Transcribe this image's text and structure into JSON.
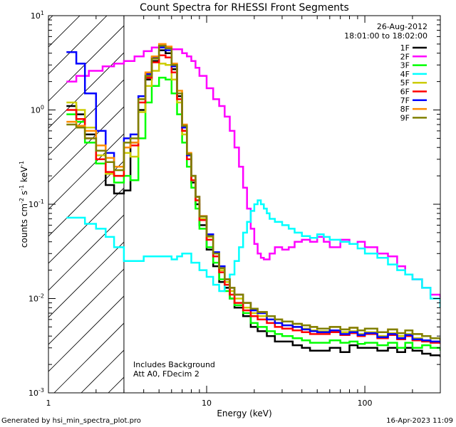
{
  "chart_data": {
    "type": "line",
    "title": "Count Spectra for RHESSI Front Segments",
    "xlabel": "Energy (keV)",
    "ylabel_parts": {
      "main": "counts cm",
      "exp1": "-2",
      "s": " s",
      "exp2": "-1",
      "unit": " keV",
      "exp3": "-1"
    },
    "x_scale": "log",
    "y_scale": "log",
    "xlim": [
      1,
      300
    ],
    "ylim": [
      0.001,
      10
    ],
    "x_ticks": [
      {
        "value": 1,
        "label": "1"
      },
      {
        "value": 10,
        "label": "10"
      },
      {
        "value": 100,
        "label": "100"
      }
    ],
    "y_ticks": [
      {
        "value": 10,
        "base": "10",
        "exp": "1"
      },
      {
        "value": 1,
        "base": "10",
        "exp": "0"
      },
      {
        "value": 0.1,
        "base": "10",
        "exp": "-1"
      },
      {
        "value": 0.01,
        "base": "10",
        "exp": "-2"
      },
      {
        "value": 0.001,
        "base": "10",
        "exp": "-3"
      }
    ],
    "date": "26-Aug-2012",
    "time_range": "18:01:00 to 18:02:00",
    "shaded_region_max_keV": 3,
    "annotations": [
      "Includes Background",
      "Att A0, FDecim 2"
    ],
    "footer_left": "Generated by hsi_min_spectra_plot.pro",
    "footer_right": "16-Apr-2023 11:09",
    "series": [
      {
        "name": "1F",
        "color": "#000000",
        "x": [
          1.3,
          1.5,
          1.7,
          2.0,
          2.3,
          2.6,
          3.0,
          3.3,
          3.7,
          4.1,
          4.5,
          5.0,
          5.5,
          6.0,
          6.5,
          7.0,
          7.5,
          8.0,
          8.5,
          9.0,
          10,
          11,
          12,
          13,
          14,
          15,
          17,
          19,
          21,
          24,
          27,
          30,
          35,
          40,
          45,
          50,
          60,
          70,
          80,
          90,
          100,
          120,
          140,
          160,
          180,
          200,
          230,
          260,
          300
        ],
        "y": [
          1.1,
          0.9,
          0.55,
          0.3,
          0.16,
          0.13,
          0.14,
          0.45,
          1.0,
          2.1,
          3.3,
          4.3,
          4.0,
          2.7,
          1.4,
          0.6,
          0.3,
          0.17,
          0.1,
          0.06,
          0.033,
          0.022,
          0.015,
          0.013,
          0.01,
          0.008,
          0.0065,
          0.005,
          0.0045,
          0.004,
          0.0035,
          0.0035,
          0.0032,
          0.003,
          0.0028,
          0.0028,
          0.003,
          0.0027,
          0.0032,
          0.003,
          0.003,
          0.0028,
          0.003,
          0.0027,
          0.003,
          0.0028,
          0.0026,
          0.0025,
          0.0024
        ]
      },
      {
        "name": "2F",
        "color": "#ff00ff",
        "x": [
          1.3,
          1.5,
          1.8,
          2.2,
          2.6,
          3.0,
          3.5,
          4.0,
          4.5,
          5.0,
          5.5,
          6.0,
          7.0,
          7.5,
          8.0,
          8.5,
          9.0,
          10,
          11,
          12,
          13,
          14,
          15,
          16,
          17,
          18,
          19,
          20,
          21,
          22,
          23,
          24,
          25,
          27,
          30,
          33,
          36,
          40,
          45,
          50,
          55,
          60,
          70,
          80,
          90,
          100,
          120,
          140,
          160,
          180,
          200,
          230,
          260,
          300
        ],
        "y": [
          2.0,
          2.3,
          2.6,
          2.9,
          3.1,
          3.3,
          3.7,
          4.2,
          4.6,
          4.7,
          4.6,
          4.4,
          4.0,
          3.7,
          3.3,
          2.8,
          2.3,
          1.7,
          1.3,
          1.1,
          0.85,
          0.6,
          0.4,
          0.25,
          0.15,
          0.09,
          0.055,
          0.038,
          0.03,
          0.027,
          0.026,
          0.026,
          0.03,
          0.035,
          0.033,
          0.035,
          0.04,
          0.042,
          0.04,
          0.045,
          0.04,
          0.035,
          0.042,
          0.038,
          0.04,
          0.035,
          0.03,
          0.028,
          0.022,
          0.018,
          0.016,
          0.013,
          0.011,
          0.009
        ]
      },
      {
        "name": "3F",
        "color": "#00ff00",
        "x": [
          1.3,
          1.5,
          1.7,
          2.0,
          2.3,
          2.6,
          3.0,
          3.3,
          3.7,
          4.1,
          4.5,
          5.0,
          5.5,
          6.0,
          6.5,
          7.0,
          7.5,
          8.0,
          8.5,
          9.0,
          10,
          11,
          12,
          13,
          14,
          15,
          17,
          19,
          21,
          24,
          27,
          30,
          35,
          40,
          45,
          50,
          60,
          70,
          80,
          90,
          100,
          120,
          140,
          160,
          180,
          200,
          230,
          260,
          300
        ],
        "y": [
          0.9,
          0.75,
          0.45,
          0.27,
          0.21,
          0.17,
          0.2,
          0.18,
          0.5,
          1.2,
          1.8,
          2.2,
          2.1,
          1.5,
          0.9,
          0.45,
          0.25,
          0.15,
          0.09,
          0.055,
          0.035,
          0.024,
          0.016,
          0.012,
          0.01,
          0.0085,
          0.007,
          0.0055,
          0.005,
          0.0045,
          0.0042,
          0.004,
          0.0038,
          0.0036,
          0.0034,
          0.0034,
          0.0036,
          0.0034,
          0.0035,
          0.0033,
          0.0034,
          0.0032,
          0.0034,
          0.003,
          0.0034,
          0.003,
          0.0032,
          0.003,
          0.0028
        ]
      },
      {
        "name": "4F",
        "color": "#00ffff",
        "x": [
          1.3,
          1.5,
          1.7,
          2.0,
          2.3,
          2.6,
          3.0,
          3.5,
          4.0,
          4.5,
          5.0,
          5.5,
          6.0,
          6.5,
          7.0,
          8.0,
          9.0,
          10,
          11,
          12,
          13,
          14,
          15,
          16,
          17,
          18,
          19,
          20,
          21,
          22,
          23,
          24,
          25,
          27,
          30,
          33,
          36,
          40,
          45,
          50,
          55,
          60,
          70,
          80,
          90,
          100,
          120,
          140,
          160,
          180,
          200,
          230,
          260,
          300
        ],
        "y": [
          0.072,
          0.072,
          0.062,
          0.055,
          0.045,
          0.035,
          0.025,
          0.025,
          0.028,
          0.028,
          0.028,
          0.028,
          0.026,
          0.028,
          0.03,
          0.024,
          0.02,
          0.017,
          0.014,
          0.012,
          0.015,
          0.018,
          0.025,
          0.035,
          0.05,
          0.065,
          0.085,
          0.1,
          0.11,
          0.1,
          0.09,
          0.08,
          0.07,
          0.065,
          0.06,
          0.055,
          0.05,
          0.046,
          0.044,
          0.048,
          0.045,
          0.042,
          0.04,
          0.038,
          0.034,
          0.03,
          0.027,
          0.023,
          0.02,
          0.018,
          0.016,
          0.013,
          0.01,
          0.008
        ]
      },
      {
        "name": "5F",
        "color": "#cccc00",
        "x": [
          1.3,
          1.5,
          1.7,
          2.0,
          2.3,
          2.6,
          3.0,
          3.3,
          3.7,
          4.1,
          4.5,
          5.0,
          5.5,
          6.0,
          6.5,
          7.0,
          7.5,
          8.0,
          8.5,
          9.0,
          10,
          11,
          12,
          13,
          14,
          15,
          17,
          19,
          21,
          24,
          27,
          30,
          35,
          40,
          45,
          50,
          60,
          70,
          80,
          90,
          100,
          120,
          140,
          160,
          180,
          200,
          230,
          260,
          300
        ],
        "y": [
          1.2,
          1.0,
          0.65,
          0.33,
          0.21,
          0.2,
          0.35,
          0.32,
          0.95,
          1.8,
          2.6,
          3.1,
          3.0,
          2.1,
          1.2,
          0.55,
          0.3,
          0.18,
          0.11,
          0.07,
          0.045,
          0.03,
          0.02,
          0.015,
          0.012,
          0.01,
          0.008,
          0.007,
          0.0065,
          0.006,
          0.0055,
          0.0052,
          0.005,
          0.0048,
          0.0046,
          0.0045,
          0.0046,
          0.0044,
          0.0045,
          0.0042,
          0.0044,
          0.004,
          0.0043,
          0.004,
          0.0042,
          0.0038,
          0.0036,
          0.0035,
          0.0034
        ]
      },
      {
        "name": "6F",
        "color": "#ff0000",
        "x": [
          1.3,
          1.5,
          1.7,
          2.0,
          2.3,
          2.6,
          3.0,
          3.3,
          3.7,
          4.1,
          4.5,
          5.0,
          5.5,
          6.0,
          6.5,
          7.0,
          7.5,
          8.0,
          8.5,
          9.0,
          10,
          11,
          12,
          13,
          14,
          15,
          17,
          19,
          21,
          24,
          27,
          30,
          35,
          40,
          45,
          50,
          60,
          70,
          80,
          90,
          100,
          120,
          140,
          160,
          180,
          200,
          230,
          260,
          300
        ],
        "y": [
          1.0,
          0.8,
          0.5,
          0.3,
          0.22,
          0.2,
          0.4,
          0.42,
          1.2,
          2.2,
          3.2,
          3.8,
          3.6,
          2.5,
          1.3,
          0.6,
          0.3,
          0.18,
          0.11,
          0.068,
          0.042,
          0.028,
          0.019,
          0.014,
          0.011,
          0.009,
          0.0075,
          0.0065,
          0.006,
          0.0055,
          0.005,
          0.0048,
          0.0046,
          0.0044,
          0.0042,
          0.0042,
          0.0044,
          0.0041,
          0.0043,
          0.004,
          0.0042,
          0.0038,
          0.0041,
          0.0037,
          0.004,
          0.0036,
          0.0035,
          0.0034,
          0.0033
        ]
      },
      {
        "name": "7F",
        "color": "#0000ff",
        "x": [
          1.3,
          1.5,
          1.7,
          2.0,
          2.3,
          2.6,
          3.0,
          3.3,
          3.7,
          4.1,
          4.5,
          5.0,
          5.5,
          6.0,
          6.5,
          7.0,
          7.5,
          8.0,
          8.5,
          9.0,
          10,
          11,
          12,
          13,
          14,
          15,
          17,
          19,
          21,
          24,
          27,
          30,
          35,
          40,
          45,
          50,
          60,
          70,
          80,
          90,
          100,
          120,
          140,
          160,
          180,
          200,
          230,
          260,
          300
        ],
        "y": [
          4.1,
          3.1,
          1.5,
          0.6,
          0.35,
          0.25,
          0.5,
          0.55,
          1.4,
          2.4,
          3.6,
          4.6,
          4.3,
          2.9,
          1.5,
          0.65,
          0.33,
          0.2,
          0.12,
          0.075,
          0.048,
          0.031,
          0.022,
          0.016,
          0.013,
          0.011,
          0.009,
          0.0075,
          0.007,
          0.006,
          0.0055,
          0.0052,
          0.005,
          0.0047,
          0.0045,
          0.0044,
          0.0046,
          0.0042,
          0.0044,
          0.0041,
          0.0043,
          0.0039,
          0.0042,
          0.0038,
          0.0041,
          0.0037,
          0.0036,
          0.0035,
          0.0034
        ]
      },
      {
        "name": "8F",
        "color": "#ff8c00",
        "x": [
          1.3,
          1.5,
          1.7,
          2.0,
          2.3,
          2.6,
          3.0,
          3.3,
          3.7,
          4.1,
          4.5,
          5.0,
          5.5,
          6.0,
          6.5,
          7.0,
          7.5,
          8.0,
          8.5,
          9.0,
          10,
          11,
          12,
          13,
          14,
          15,
          17,
          19,
          21,
          24,
          27,
          30,
          35,
          40,
          45,
          50,
          60,
          70,
          80,
          90,
          100,
          120,
          140,
          160,
          180,
          200,
          230,
          260,
          300
        ],
        "y": [
          0.75,
          0.68,
          0.6,
          0.42,
          0.31,
          0.25,
          0.4,
          0.45,
          1.3,
          2.5,
          3.7,
          5.0,
          4.7,
          3.1,
          1.6,
          0.7,
          0.35,
          0.2,
          0.12,
          0.075,
          0.046,
          0.03,
          0.021,
          0.016,
          0.013,
          0.011,
          0.009,
          0.0078,
          0.0072,
          0.0065,
          0.006,
          0.0057,
          0.0054,
          0.0052,
          0.005,
          0.0048,
          0.005,
          0.0047,
          0.0049,
          0.0046,
          0.0048,
          0.0044,
          0.0047,
          0.0043,
          0.0046,
          0.0042,
          0.004,
          0.0038,
          0.0036
        ]
      },
      {
        "name": "9F",
        "color": "#808000",
        "x": [
          1.3,
          1.5,
          1.7,
          2.0,
          2.3,
          2.6,
          3.0,
          3.3,
          3.7,
          4.1,
          4.5,
          5.0,
          5.5,
          6.0,
          6.5,
          7.0,
          7.5,
          8.0,
          8.5,
          9.0,
          10,
          11,
          12,
          13,
          14,
          15,
          17,
          19,
          21,
          24,
          27,
          30,
          35,
          40,
          45,
          50,
          60,
          70,
          80,
          90,
          100,
          120,
          140,
          160,
          180,
          200,
          230,
          260,
          300
        ],
        "y": [
          0.7,
          0.65,
          0.5,
          0.37,
          0.28,
          0.23,
          0.45,
          0.5,
          1.3,
          2.3,
          3.5,
          4.8,
          4.5,
          3.0,
          1.5,
          0.68,
          0.34,
          0.2,
          0.12,
          0.074,
          0.046,
          0.03,
          0.021,
          0.016,
          0.013,
          0.011,
          0.009,
          0.0078,
          0.0072,
          0.0065,
          0.006,
          0.0057,
          0.0054,
          0.0052,
          0.005,
          0.0048,
          0.005,
          0.0047,
          0.0049,
          0.0046,
          0.0048,
          0.0044,
          0.0047,
          0.0043,
          0.0046,
          0.0042,
          0.004,
          0.0038,
          0.0036
        ]
      }
    ]
  }
}
